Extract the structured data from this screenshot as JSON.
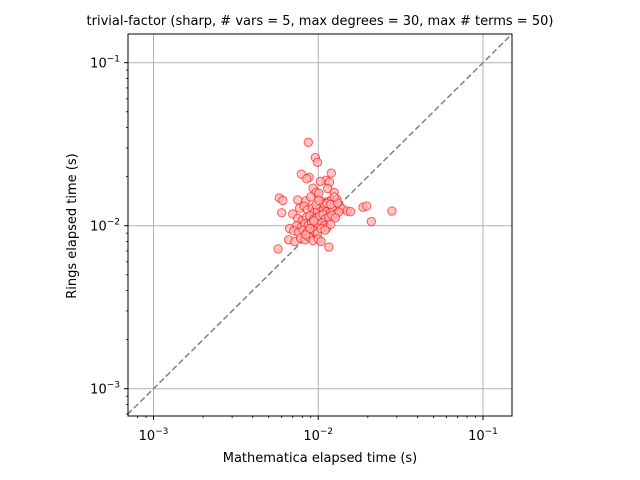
{
  "chart_data": {
    "type": "scatter",
    "title": "trivial-factor (sharp, # vars = 5, max degrees = 30, max # terms = 50)",
    "xlabel": "Mathematica elapsed time (s)",
    "ylabel": "Rings elapsed time (s)",
    "xscale": "log",
    "yscale": "log",
    "xlim": [
      0.0007,
      0.15
    ],
    "ylim": [
      0.00068,
      0.15
    ],
    "x_ticks": [
      {
        "value": 0.001,
        "base": "10",
        "exp": "−3"
      },
      {
        "value": 0.01,
        "base": "10",
        "exp": "−2"
      },
      {
        "value": 0.1,
        "base": "10",
        "exp": "−1"
      }
    ],
    "y_ticks": [
      {
        "value": 0.001,
        "base": "10",
        "exp": "−3"
      },
      {
        "value": 0.01,
        "base": "10",
        "exp": "−2"
      },
      {
        "value": 0.1,
        "base": "10",
        "exp": "−1"
      }
    ],
    "grid": true,
    "diagonal": "dashed y = x reference line",
    "colors": {
      "marker_face": "#ffb3b3",
      "marker_edge": "#ff0000",
      "diagonal": "#808080",
      "grid": "#b0b0b0"
    },
    "points": [
      [
        0.0087,
        0.0325
      ],
      [
        0.0096,
        0.0262
      ],
      [
        0.0099,
        0.0245
      ],
      [
        0.012,
        0.021
      ],
      [
        0.0079,
        0.0207
      ],
      [
        0.0088,
        0.0198
      ],
      [
        0.0085,
        0.0194
      ],
      [
        0.0111,
        0.019
      ],
      [
        0.0103,
        0.0187
      ],
      [
        0.0117,
        0.0185
      ],
      [
        0.0093,
        0.017
      ],
      [
        0.0114,
        0.0169
      ],
      [
        0.0097,
        0.016
      ],
      [
        0.0101,
        0.0158
      ],
      [
        0.0125,
        0.016
      ],
      [
        0.0058,
        0.0148
      ],
      [
        0.0061,
        0.0143
      ],
      [
        0.0075,
        0.0144
      ],
      [
        0.0084,
        0.0142
      ],
      [
        0.009,
        0.015
      ],
      [
        0.0106,
        0.014
      ],
      [
        0.0115,
        0.0141
      ],
      [
        0.012,
        0.0143
      ],
      [
        0.013,
        0.0145
      ],
      [
        0.0135,
        0.0132
      ],
      [
        0.014,
        0.0127
      ],
      [
        0.015,
        0.0123
      ],
      [
        0.0157,
        0.0122
      ],
      [
        0.0187,
        0.013
      ],
      [
        0.0197,
        0.0132
      ],
      [
        0.028,
        0.0123
      ],
      [
        0.021,
        0.0106
      ],
      [
        0.006,
        0.012
      ],
      [
        0.007,
        0.0118
      ],
      [
        0.0077,
        0.0128
      ],
      [
        0.0082,
        0.0132
      ],
      [
        0.0086,
        0.0125
      ],
      [
        0.0092,
        0.0128
      ],
      [
        0.0095,
        0.0121
      ],
      [
        0.0099,
        0.0124
      ],
      [
        0.0104,
        0.013
      ],
      [
        0.0108,
        0.0126
      ],
      [
        0.0112,
        0.0122
      ],
      [
        0.0118,
        0.012
      ],
      [
        0.0123,
        0.0125
      ],
      [
        0.0128,
        0.0118
      ],
      [
        0.0133,
        0.0121
      ],
      [
        0.0075,
        0.0111
      ],
      [
        0.008,
        0.0108
      ],
      [
        0.0085,
        0.0113
      ],
      [
        0.0089,
        0.0115
      ],
      [
        0.0094,
        0.011
      ],
      [
        0.0098,
        0.0112
      ],
      [
        0.0102,
        0.0115
      ],
      [
        0.0107,
        0.0117
      ],
      [
        0.011,
        0.011
      ],
      [
        0.0116,
        0.0113
      ],
      [
        0.0121,
        0.0116
      ],
      [
        0.0127,
        0.0112
      ],
      [
        0.0074,
        0.01
      ],
      [
        0.0079,
        0.0098
      ],
      [
        0.0083,
        0.0103
      ],
      [
        0.0087,
        0.0101
      ],
      [
        0.0091,
        0.0104
      ],
      [
        0.0096,
        0.0099
      ],
      [
        0.01,
        0.0102
      ],
      [
        0.0105,
        0.0104
      ],
      [
        0.0109,
        0.01
      ],
      [
        0.0113,
        0.0097
      ],
      [
        0.0119,
        0.0102
      ],
      [
        0.0067,
        0.0096
      ],
      [
        0.0071,
        0.0093
      ],
      [
        0.0076,
        0.0091
      ],
      [
        0.0081,
        0.0094
      ],
      [
        0.0086,
        0.0092
      ],
      [
        0.009,
        0.0089
      ],
      [
        0.0095,
        0.0093
      ],
      [
        0.0099,
        0.009
      ],
      [
        0.0104,
        0.0096
      ],
      [
        0.011,
        0.0094
      ],
      [
        0.0066,
        0.0082
      ],
      [
        0.0072,
        0.008
      ],
      [
        0.0078,
        0.0084
      ],
      [
        0.0083,
        0.0082
      ],
      [
        0.0088,
        0.0085
      ],
      [
        0.0093,
        0.0081
      ],
      [
        0.01,
        0.0083
      ],
      [
        0.0104,
        0.008
      ],
      [
        0.0057,
        0.0072
      ],
      [
        0.0116,
        0.0074
      ],
      [
        0.0097,
        0.0134
      ],
      [
        0.0108,
        0.0136
      ],
      [
        0.0113,
        0.0137
      ],
      [
        0.0119,
        0.0135
      ],
      [
        0.0101,
        0.0143
      ],
      [
        0.0094,
        0.0107
      ],
      [
        0.0089,
        0.0096
      ],
      [
        0.0084,
        0.0088
      ],
      [
        0.0131,
        0.0138
      ],
      [
        0.0125,
        0.015
      ]
    ]
  }
}
